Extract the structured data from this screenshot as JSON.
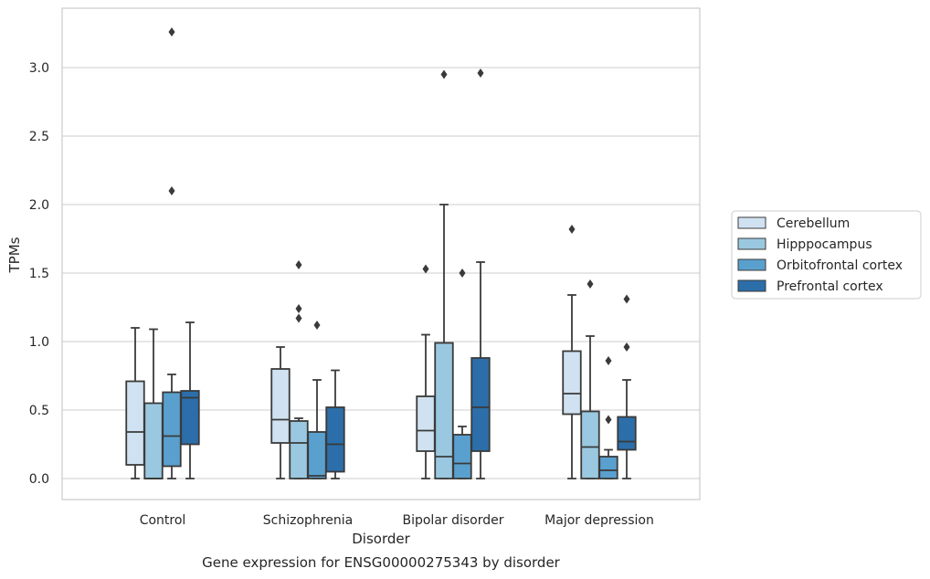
{
  "chart_data": {
    "type": "box",
    "title": "",
    "caption": "Gene expression for ENSG00000275343 by disorder",
    "xlabel": "Disorder",
    "ylabel": "TPMs",
    "ylim": [
      -0.16,
      3.43
    ],
    "yticks": [
      0.0,
      0.5,
      1.0,
      1.5,
      2.0,
      2.5,
      3.0
    ],
    "ytick_labels": [
      "0.0",
      "0.5",
      "1.0",
      "1.5",
      "2.0",
      "2.5",
      "3.0"
    ],
    "grid": "horizontal",
    "legend_position": "right",
    "categories": [
      "Control",
      "Schizophrenia",
      "Bipolar disorder",
      "Major depression"
    ],
    "series": [
      {
        "name": "Cerebellum",
        "color": "#d0e2f1",
        "boxes": [
          {
            "whisker_low": 0.0,
            "q1": 0.1,
            "median": 0.34,
            "q3": 0.71,
            "whisker_high": 1.1,
            "outliers": []
          },
          {
            "whisker_low": 0.0,
            "q1": 0.26,
            "median": 0.43,
            "q3": 0.8,
            "whisker_high": 0.96,
            "outliers": []
          },
          {
            "whisker_low": 0.0,
            "q1": 0.2,
            "median": 0.35,
            "q3": 0.6,
            "whisker_high": 1.05,
            "outliers": [
              1.53
            ]
          },
          {
            "whisker_low": 0.0,
            "q1": 0.47,
            "median": 0.62,
            "q3": 0.93,
            "whisker_high": 1.34,
            "outliers": [
              1.82
            ]
          }
        ]
      },
      {
        "name": "Hipppocampus",
        "color": "#9ac8e0",
        "boxes": [
          {
            "whisker_low": 0.0,
            "q1": 0.0,
            "median": 0.0,
            "q3": 0.55,
            "whisker_high": 1.09,
            "outliers": []
          },
          {
            "whisker_low": 0.0,
            "q1": 0.0,
            "median": 0.26,
            "q3": 0.42,
            "whisker_high": 0.44,
            "outliers": [
              1.56,
              1.24,
              1.17
            ]
          },
          {
            "whisker_low": 0.0,
            "q1": 0.0,
            "median": 0.16,
            "q3": 0.99,
            "whisker_high": 2.0,
            "outliers": [
              2.95
            ]
          },
          {
            "whisker_low": 0.0,
            "q1": 0.0,
            "median": 0.23,
            "q3": 0.49,
            "whisker_high": 1.04,
            "outliers": [
              1.42
            ]
          }
        ]
      },
      {
        "name": "Orbitofrontal cortex",
        "color": "#5aa0ce",
        "boxes": [
          {
            "whisker_low": 0.0,
            "q1": 0.09,
            "median": 0.31,
            "q3": 0.63,
            "whisker_high": 0.76,
            "outliers": [
              3.26,
              2.1
            ]
          },
          {
            "whisker_low": 0.0,
            "q1": 0.0,
            "median": 0.02,
            "q3": 0.34,
            "whisker_high": 0.72,
            "outliers": [
              1.12
            ]
          },
          {
            "whisker_low": 0.0,
            "q1": 0.0,
            "median": 0.11,
            "q3": 0.32,
            "whisker_high": 0.38,
            "outliers": [
              1.5
            ]
          },
          {
            "whisker_low": 0.0,
            "q1": 0.0,
            "median": 0.06,
            "q3": 0.16,
            "whisker_high": 0.21,
            "outliers": [
              0.86,
              0.43
            ]
          }
        ]
      },
      {
        "name": "Prefrontal cortex",
        "color": "#2b6ea9",
        "boxes": [
          {
            "whisker_low": 0.0,
            "q1": 0.25,
            "median": 0.59,
            "q3": 0.64,
            "whisker_high": 1.14,
            "outliers": []
          },
          {
            "whisker_low": 0.0,
            "q1": 0.05,
            "median": 0.25,
            "q3": 0.52,
            "whisker_high": 0.79,
            "outliers": []
          },
          {
            "whisker_low": 0.0,
            "q1": 0.2,
            "median": 0.52,
            "q3": 0.88,
            "whisker_high": 1.58,
            "outliers": [
              2.96
            ]
          },
          {
            "whisker_low": 0.0,
            "q1": 0.21,
            "median": 0.27,
            "q3": 0.45,
            "whisker_high": 0.72,
            "outliers": [
              1.31,
              0.96
            ]
          }
        ]
      }
    ]
  }
}
